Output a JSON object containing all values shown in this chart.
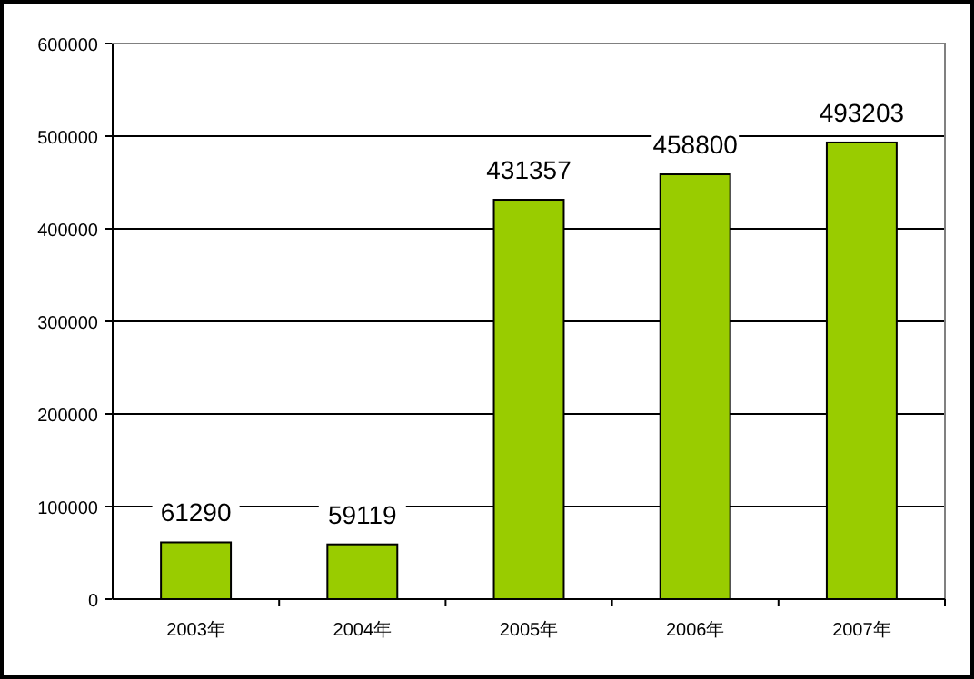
{
  "chart_data": {
    "type": "bar",
    "categories": [
      "2003年",
      "2004年",
      "2005年",
      "2006年",
      "2007年"
    ],
    "values": [
      61290,
      59119,
      431357,
      458800,
      493203
    ],
    "color": "#99cc00",
    "ylim": [
      0,
      600000
    ],
    "yticks": [
      0,
      100000,
      200000,
      300000,
      400000,
      500000,
      600000
    ],
    "grid": "y",
    "data_labels": true
  }
}
